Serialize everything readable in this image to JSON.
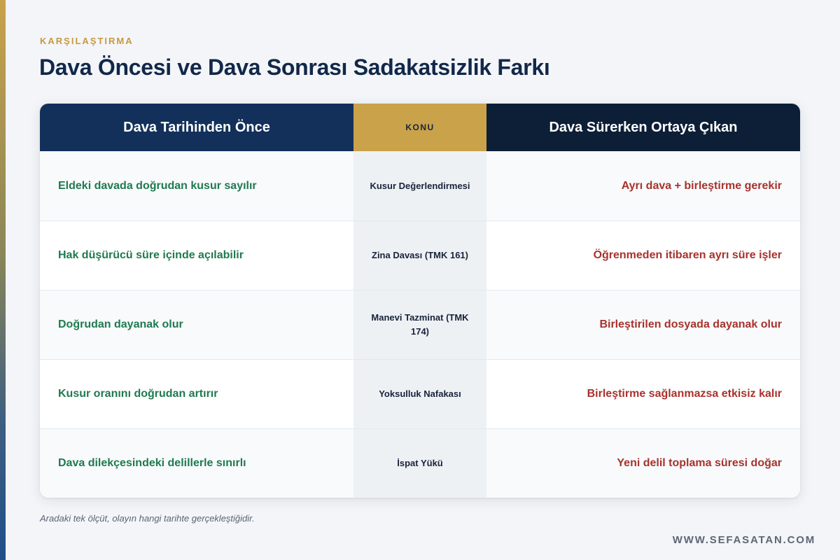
{
  "header": {
    "eyebrow": "KARŞILAŞTIRMA",
    "title": "Dava Öncesi ve Dava Sonrası Sadakatsizlik Farkı"
  },
  "table": {
    "columns": {
      "left": "Dava Tarihinden Önce",
      "middle": "KONU",
      "right": "Dava Sürerken Ortaya Çıkan"
    },
    "rows": [
      {
        "before": "Eldeki davada doğrudan kusur sayılır",
        "topic": "Kusur Değerlendirmesi",
        "during": "Ayrı dava + birleştirme gerekir"
      },
      {
        "before": "Hak düşürücü süre içinde açılabilir",
        "topic": "Zina Davası (TMK 161)",
        "during": "Öğrenmeden itibaren ayrı süre işler"
      },
      {
        "before": "Doğrudan dayanak olur",
        "topic": "Manevi Tazminat (TMK 174)",
        "during": "Birleştirilen dosyada dayanak olur"
      },
      {
        "before": "Kusur oranını doğrudan artırır",
        "topic": "Yoksulluk Nafakası",
        "during": "Birleştirme sağlanmazsa etkisiz kalır"
      },
      {
        "before": "Dava dilekçesindeki delillerle sınırlı",
        "topic": "İspat Yükü",
        "during": "Yeni delil toplama süresi doğar"
      }
    ]
  },
  "footer": {
    "note": "Aradaki tek ölçüt, olayın hangi tarihte gerçekleştiğidir.",
    "website": "WWW.SEFASATAN.COM"
  },
  "colors": {
    "navy": "#12305a",
    "dark_navy": "#0d1f37",
    "gold": "#c9a24a",
    "green_text": "#1f7a4f",
    "red_text": "#a8322c"
  }
}
